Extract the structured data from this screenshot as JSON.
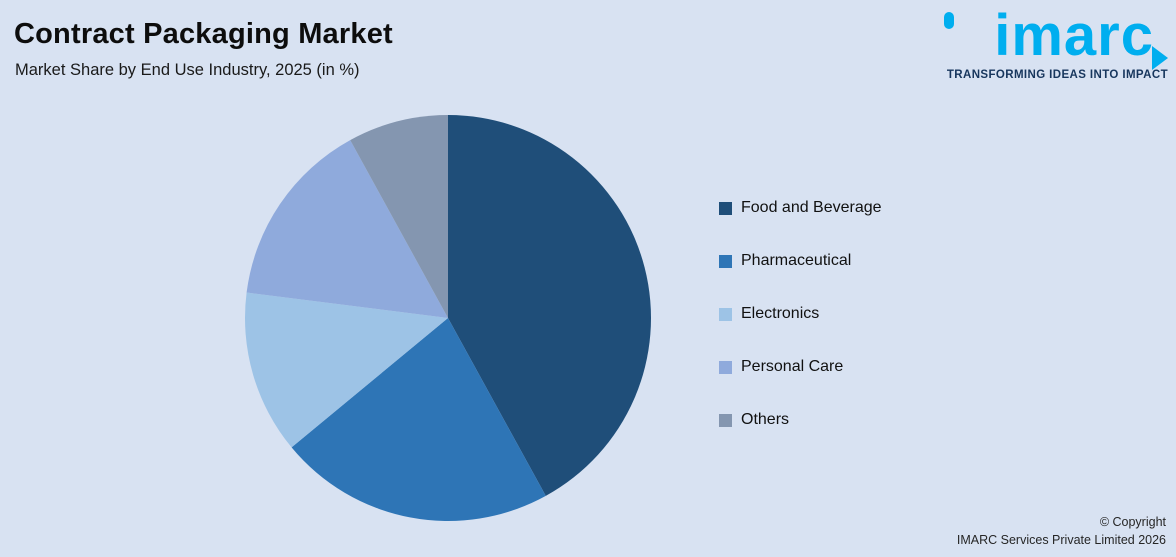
{
  "page": {
    "title": "Contract Packaging Market",
    "subtitle": "Market Share by End Use Industry, 2025 (in %)",
    "background_color": "#d8e2f2"
  },
  "logo": {
    "text": "imarc",
    "tagline": "TRANSFORMING IDEAS INTO IMPACT",
    "brand_color": "#00aeef",
    "tagline_color": "#17365d"
  },
  "footer": {
    "copyright_line1": "© Copyright",
    "copyright_line2": "IMARC Services Private Limited 2026"
  },
  "chart_data": {
    "type": "pie",
    "title": "Contract Packaging Market",
    "subtitle": "Market Share by End Use Industry, 2025 (in %)",
    "unit": "%",
    "categories": [
      "Food and Beverage",
      "Pharmaceutical",
      "Electronics",
      "Personal Care",
      "Others"
    ],
    "values": [
      42,
      22,
      13,
      15,
      8
    ],
    "colors": [
      "#1f4e79",
      "#2e75b6",
      "#9dc3e6",
      "#8faadc",
      "#8496b0"
    ],
    "legend_position": "right",
    "start_angle_deg": -90,
    "direction": "clockwise"
  }
}
